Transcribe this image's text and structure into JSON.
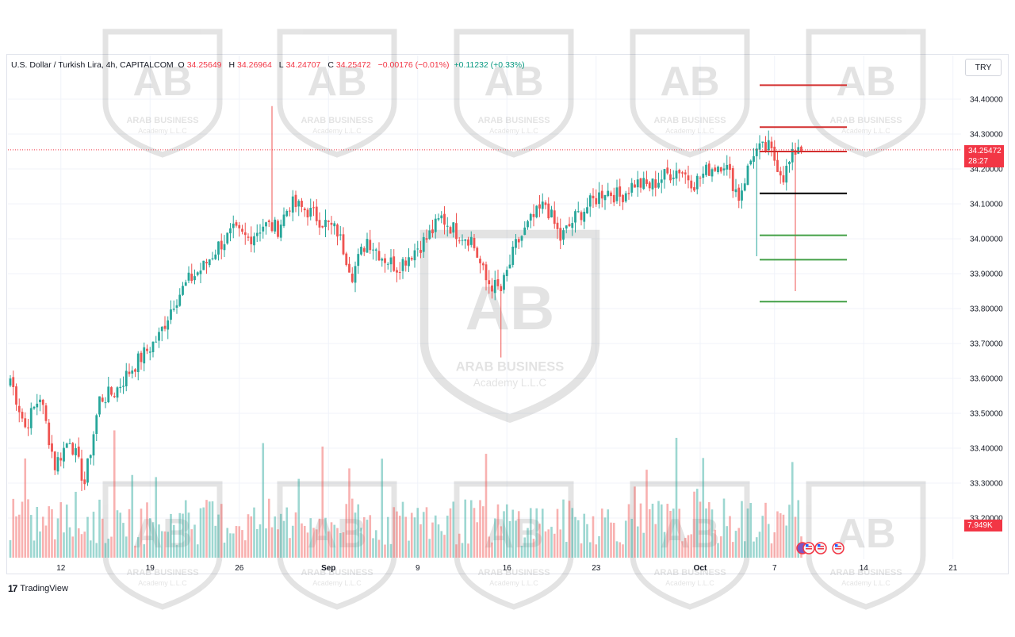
{
  "header": {
    "symbol": "U.S. Dollar / Turkish Lira, 4h, CAPITALCOM",
    "o_label": "O",
    "o_value": "34.25649",
    "h_label": "H",
    "h_value": "34.26964",
    "l_label": "L",
    "l_value": "34.24707",
    "c_label": "C",
    "c_value": "34.25472",
    "change": "−0.00176 (−0.01%)",
    "extra_change": "+0.11232 (+0.33%)"
  },
  "currency": "TRY",
  "price_badge": {
    "price": "34.25472",
    "countdown": "28:27"
  },
  "volume_badge": "7.949K",
  "branding": {
    "logo": "TradingView"
  },
  "watermark": {
    "title": "ARAB BUSINESS",
    "subtitle": "Academy L.L.C",
    "monogram": "AB"
  },
  "colors": {
    "up": "#26a69a",
    "down": "#ef5350",
    "resistance": "#d32f2f",
    "support": "#43a047",
    "pivot": "#000000",
    "last_price_line": "#f23645"
  },
  "chart_data": {
    "type": "candlestick",
    "title": "U.S. Dollar / Turkish Lira, 4h, CAPITALCOM",
    "ylim": [
      33.15,
      34.5
    ],
    "y_ticks": [
      "34.40000",
      "34.30000",
      "34.20000",
      "34.10000",
      "34.00000",
      "33.90000",
      "33.80000",
      "33.70000",
      "33.60000",
      "33.50000",
      "33.40000",
      "33.30000",
      "33.20000"
    ],
    "y_tick_values": [
      34.4,
      34.3,
      34.2,
      34.1,
      34.0,
      33.9,
      33.8,
      33.7,
      33.6,
      33.5,
      33.4,
      33.3,
      33.2
    ],
    "x_ticks": [
      "12",
      "19",
      "26",
      "Sep",
      "9",
      "16",
      "23",
      "Oct",
      "7",
      "14",
      "21"
    ],
    "x_tick_index": [
      17,
      47,
      77,
      107,
      137,
      167,
      197,
      232,
      257,
      287,
      317
    ],
    "last_price": 34.25472,
    "horizontal_levels": [
      {
        "price": 34.44,
        "role": "resistance"
      },
      {
        "price": 34.32,
        "role": "resistance"
      },
      {
        "price": 34.25,
        "role": "resistance"
      },
      {
        "price": 34.13,
        "role": "pivot"
      },
      {
        "price": 34.01,
        "role": "support"
      },
      {
        "price": 33.94,
        "role": "support"
      },
      {
        "price": 33.82,
        "role": "support"
      }
    ],
    "anchor_closes": [
      [
        0,
        33.6
      ],
      [
        5,
        33.46
      ],
      [
        10,
        33.55
      ],
      [
        15,
        33.35
      ],
      [
        20,
        33.43
      ],
      [
        25,
        33.3
      ],
      [
        30,
        33.54
      ],
      [
        35,
        33.56
      ],
      [
        40,
        33.62
      ],
      [
        45,
        33.67
      ],
      [
        50,
        33.72
      ],
      [
        55,
        33.82
      ],
      [
        60,
        33.88
      ],
      [
        65,
        33.92
      ],
      [
        70,
        33.98
      ],
      [
        75,
        34.02
      ],
      [
        80,
        34.0
      ],
      [
        85,
        34.04
      ],
      [
        90,
        34.03
      ],
      [
        94,
        34.1
      ],
      [
        100,
        34.08
      ],
      [
        105,
        34.05
      ],
      [
        110,
        34.02
      ],
      [
        115,
        33.9
      ],
      [
        120,
        34.0
      ],
      [
        125,
        33.95
      ],
      [
        130,
        33.92
      ],
      [
        135,
        33.96
      ],
      [
        140,
        34.0
      ],
      [
        145,
        34.06
      ],
      [
        150,
        34.02
      ],
      [
        155,
        34.0
      ],
      [
        160,
        33.88
      ],
      [
        165,
        33.85
      ],
      [
        170,
        33.98
      ],
      [
        175,
        34.05
      ],
      [
        180,
        34.1
      ],
      [
        185,
        34.0
      ],
      [
        190,
        34.06
      ],
      [
        195,
        34.1
      ],
      [
        200,
        34.14
      ],
      [
        205,
        34.12
      ],
      [
        210,
        34.16
      ],
      [
        215,
        34.15
      ],
      [
        220,
        34.18
      ],
      [
        225,
        34.2
      ],
      [
        230,
        34.16
      ],
      [
        235,
        34.2
      ],
      [
        240,
        34.22
      ],
      [
        245,
        34.12
      ],
      [
        250,
        34.25
      ],
      [
        255,
        34.26
      ],
      [
        260,
        34.18
      ],
      [
        265,
        34.27
      ],
      [
        266,
        34.25
      ]
    ],
    "spikes": [
      {
        "index": 88,
        "high": 34.38
      },
      {
        "index": 165,
        "low": 33.66
      },
      {
        "index": 264,
        "low": 33.85
      },
      {
        "index": 251,
        "low": 33.95
      }
    ]
  }
}
